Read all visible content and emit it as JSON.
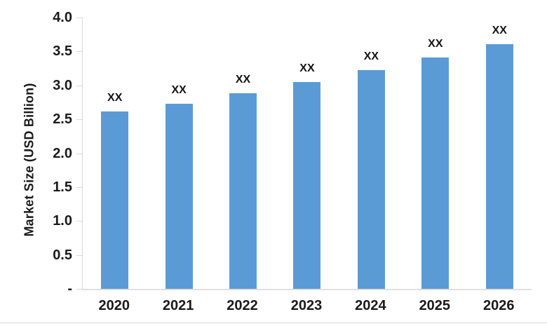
{
  "chart_data": {
    "type": "bar",
    "title": "",
    "xlabel": "",
    "ylabel": "Market Size (USD Billion)",
    "categories": [
      "2020",
      "2021",
      "2022",
      "2023",
      "2024",
      "2025",
      "2026"
    ],
    "values": [
      2.61,
      2.73,
      2.88,
      3.05,
      3.22,
      3.41,
      3.61
    ],
    "bar_labels": [
      "XX",
      "XX",
      "XX",
      "XX",
      "XX",
      "XX",
      "XX"
    ],
    "ylim": [
      0,
      4.0
    ],
    "ytick_interval": 0.5,
    "ytick_labels": [
      "4.0",
      "3.5",
      "3.0",
      "2.5",
      "2.0",
      "1.5",
      "1.0",
      "0.5",
      "-"
    ],
    "grid": false,
    "legend": "none",
    "bar_color": "#5B9BD5",
    "axis_color": "#D9D9D9",
    "text_color": "#1A1A1A"
  }
}
